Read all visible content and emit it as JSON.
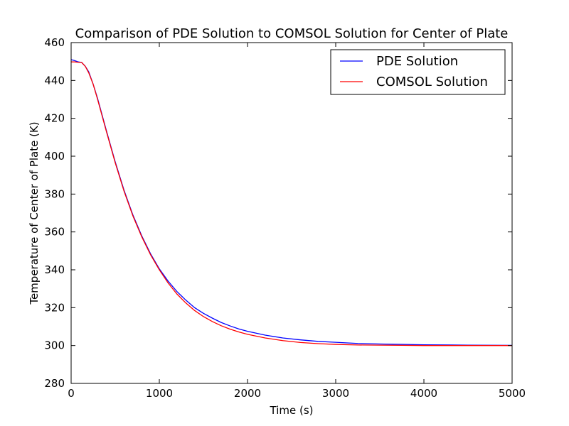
{
  "chart_data": {
    "type": "line",
    "title": "Comparison of PDE Solution to COMSOL Solution for Center of Plate",
    "xlabel": "Time (s)",
    "ylabel": "Temperature of Center of Plate (K)",
    "xlim": [
      0,
      5000
    ],
    "ylim": [
      280,
      460
    ],
    "xticks": [
      0,
      1000,
      2000,
      3000,
      4000,
      5000
    ],
    "yticks": [
      280,
      300,
      320,
      340,
      360,
      380,
      400,
      420,
      440,
      460
    ],
    "xtick_labels": [
      "0",
      "1000",
      "2000",
      "3000",
      "4000",
      "5000"
    ],
    "ytick_labels": [
      "280",
      "300",
      "320",
      "340",
      "360",
      "380",
      "400",
      "420",
      "440",
      "460"
    ],
    "grid": false,
    "legend_position": "top-right",
    "series": [
      {
        "name": "PDE Solution",
        "color": "#0000ff",
        "x": [
          0,
          40,
          80,
          120,
          160,
          200,
          250,
          300,
          400,
          500,
          600,
          700,
          800,
          900,
          1000,
          1100,
          1200,
          1300,
          1400,
          1500,
          1600,
          1700,
          1800,
          1900,
          2000,
          2200,
          2400,
          2600,
          2800,
          3000,
          3250,
          3500,
          3750,
          4000,
          4500,
          5000
        ],
        "y": [
          451,
          450.5,
          449.8,
          449.5,
          447.5,
          444.5,
          438,
          430.5,
          413.5,
          397,
          382,
          369,
          358,
          348.5,
          340.5,
          334,
          328.5,
          324,
          320,
          317,
          314.5,
          312.2,
          310.4,
          308.8,
          307.5,
          305.5,
          304,
          303,
          302.2,
          301.7,
          301.1,
          300.8,
          300.6,
          300.4,
          300.2,
          300.1
        ]
      },
      {
        "name": "COMSOL Solution",
        "color": "#ff0000",
        "x": [
          0,
          40,
          80,
          120,
          160,
          200,
          250,
          300,
          400,
          500,
          600,
          700,
          800,
          900,
          1000,
          1100,
          1200,
          1300,
          1400,
          1500,
          1600,
          1700,
          1800,
          1900,
          2000,
          2200,
          2400,
          2600,
          2800,
          3000,
          3250,
          3500,
          3750,
          4000,
          4500,
          5000
        ],
        "y": [
          449.8,
          449.8,
          449.6,
          449.5,
          447.5,
          444,
          438,
          430,
          413,
          396.5,
          381.5,
          368.5,
          357.5,
          348,
          340,
          333,
          327.2,
          322.5,
          318.5,
          315.3,
          312.7,
          310.5,
          308.7,
          307.2,
          305.9,
          304,
          302.6,
          301.6,
          301,
          300.6,
          300.3,
          300.2,
          300.1,
          300,
          300,
          300
        ]
      }
    ]
  }
}
